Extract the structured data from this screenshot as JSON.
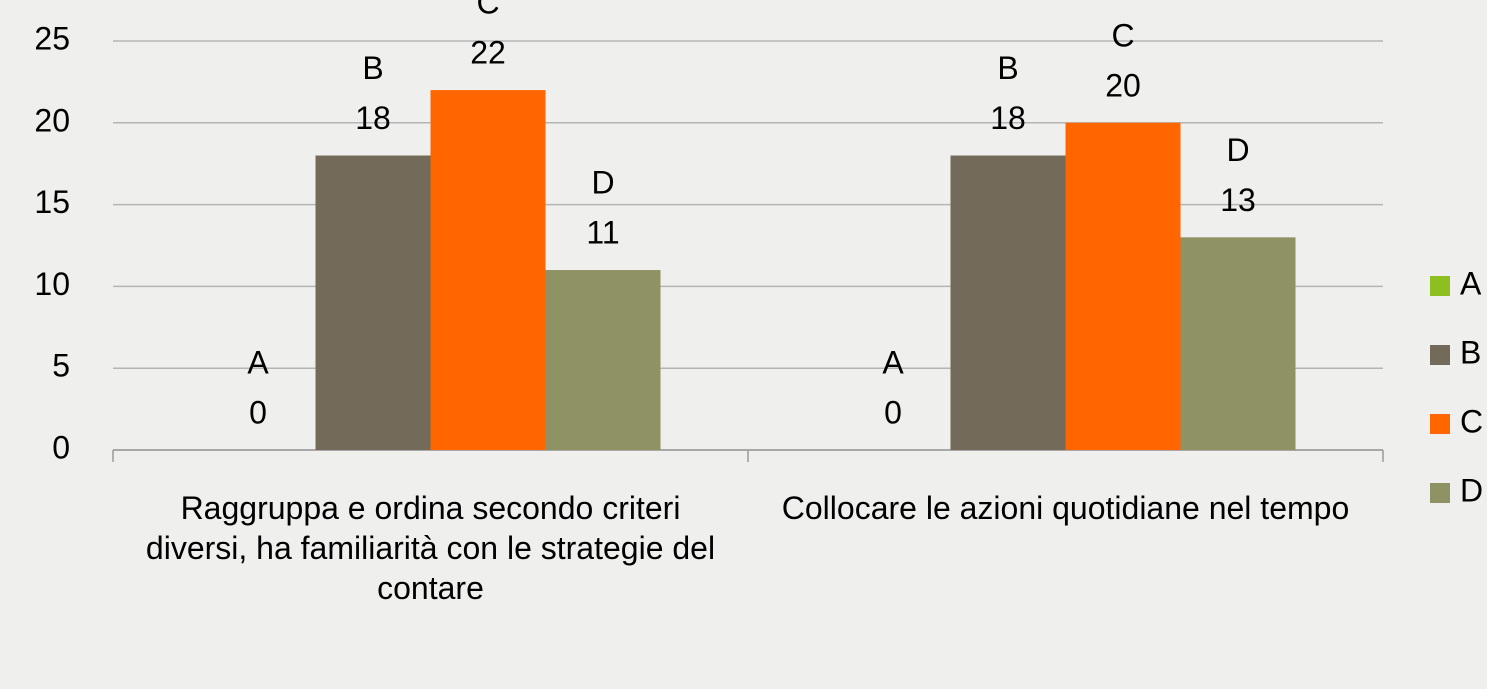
{
  "chart_data": {
    "type": "bar",
    "categories": [
      "Raggruppa e ordina secondo criteri diversi, ha familiarità con le strategie del contare",
      "Collocare le azioni quotidiane nel tempo"
    ],
    "series": [
      {
        "name": "A",
        "color": "#8cbf1f",
        "values": [
          0,
          0
        ]
      },
      {
        "name": "B",
        "color": "#736a59",
        "values": [
          18,
          18
        ]
      },
      {
        "name": "C",
        "color": "#ff6600",
        "values": [
          22,
          20
        ]
      },
      {
        "name": "D",
        "color": "#8f9263",
        "values": [
          11,
          13
        ]
      }
    ],
    "ylim": [
      0,
      25
    ],
    "yticks": [
      0,
      5,
      10,
      15,
      20,
      25
    ],
    "grid": true,
    "legend": "right"
  }
}
